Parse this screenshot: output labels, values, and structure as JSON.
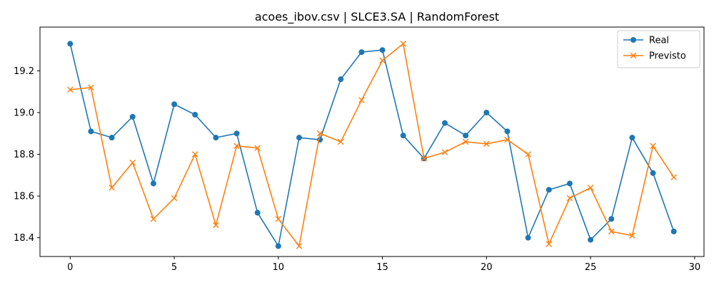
{
  "chart_data": {
    "type": "line",
    "title": "acoes_ibov.csv | SLCE3.SA | RandomForest",
    "xlabel": "",
    "ylabel": "",
    "xlim": [
      -1.45,
      30.45
    ],
    "ylim": [
      18.31,
      19.41
    ],
    "xticks": [
      0,
      5,
      10,
      15,
      20,
      25,
      30
    ],
    "yticks": [
      18.4,
      18.6,
      18.8,
      19.0,
      19.2
    ],
    "ytick_labels": [
      "18.4",
      "18.6",
      "18.8",
      "19.0",
      "19.2"
    ],
    "grid": false,
    "legend_position": "top-right",
    "x": [
      0,
      1,
      2,
      3,
      4,
      5,
      6,
      7,
      8,
      9,
      10,
      11,
      12,
      13,
      14,
      15,
      16,
      17,
      18,
      19,
      20,
      21,
      22,
      23,
      24,
      25,
      26,
      27,
      28,
      29
    ],
    "series": [
      {
        "name": "Real",
        "color": "#1f77b4",
        "marker": "circle",
        "values": [
          19.33,
          18.91,
          18.88,
          18.98,
          18.66,
          19.04,
          18.99,
          18.88,
          18.9,
          18.52,
          18.36,
          18.88,
          18.87,
          19.16,
          19.29,
          19.3,
          18.89,
          18.78,
          18.95,
          18.89,
          19.0,
          18.91,
          18.4,
          18.63,
          18.66,
          18.39,
          18.49,
          18.88,
          18.71,
          18.43
        ]
      },
      {
        "name": "Previsto",
        "color": "#ff7f0e",
        "marker": "x",
        "values": [
          19.11,
          19.12,
          18.64,
          18.76,
          18.49,
          18.59,
          18.8,
          18.46,
          18.84,
          18.83,
          18.49,
          18.36,
          18.9,
          18.86,
          19.06,
          19.25,
          19.33,
          18.78,
          18.81,
          18.86,
          18.85,
          18.87,
          18.8,
          18.37,
          18.59,
          18.64,
          18.43,
          18.41,
          18.84,
          18.69
        ]
      }
    ]
  }
}
